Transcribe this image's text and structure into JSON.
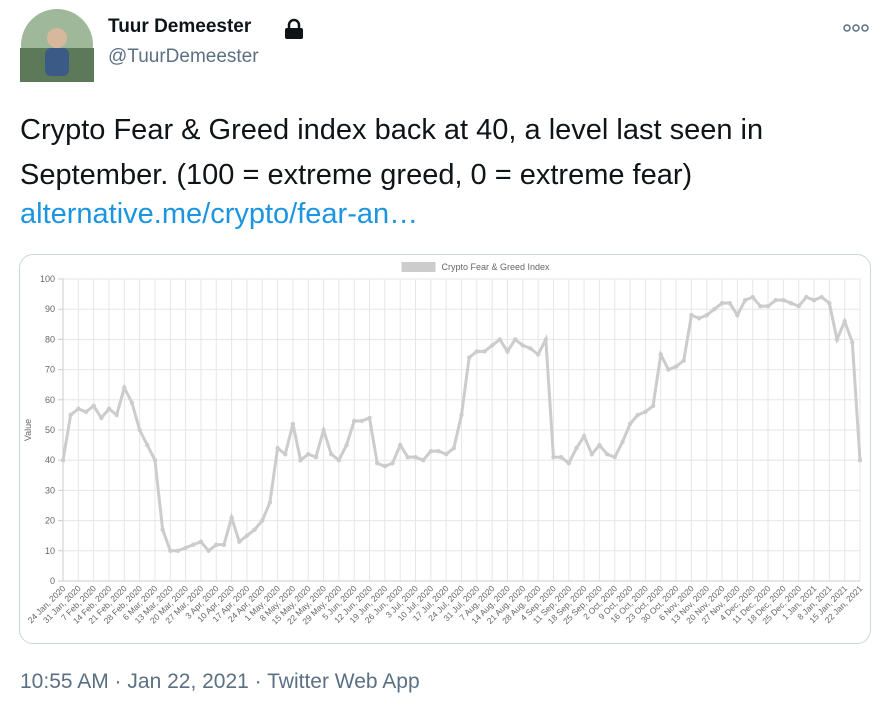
{
  "tweet": {
    "name": "Tuur Demeester",
    "handle": "@TuurDemeester",
    "text": "Crypto Fear & Greed index back at 40, a level last seen in September. (100 = extreme greed, 0 = extreme fear)",
    "link": "alternative.me/crypto/fear-an…",
    "footer": "10:55 AM · Jan 22, 2021 · Twitter Web App"
  },
  "chart_data": {
    "type": "line",
    "y_label": "Value",
    "grid": true,
    "legend": "top",
    "ylim": [
      0,
      100
    ],
    "yticks": [
      0,
      10,
      20,
      30,
      40,
      50,
      60,
      70,
      80,
      90,
      100
    ],
    "categories": [
      "24 Jan, 2020",
      null,
      "31 Jan, 2020",
      null,
      "7 Feb, 2020",
      null,
      "14 Feb, 2020",
      null,
      "21 Feb, 2020",
      null,
      "28 Feb, 2020",
      null,
      "6 Mar, 2020",
      null,
      "13 Mar, 2020",
      null,
      "20 Mar, 2020",
      null,
      "27 Mar, 2020",
      null,
      "3 Apr, 2020",
      null,
      "10 Apr, 2020",
      null,
      "17 Apr, 2020",
      null,
      "24 Apr, 2020",
      null,
      "1 May, 2020",
      null,
      "8 May, 2020",
      null,
      "15 May, 2020",
      null,
      "22 May, 2020",
      null,
      "29 May, 2020",
      null,
      "5 Jun, 2020",
      null,
      "12 Jun, 2020",
      null,
      "19 Jun, 2020",
      null,
      "26 Jun, 2020",
      null,
      "3 Jul, 2020",
      null,
      "10 Jul, 2020",
      null,
      "17 Jul, 2020",
      null,
      "24 Jul, 2020",
      null,
      "31 Jul, 2020",
      null,
      "7 Aug, 2020",
      null,
      "14 Aug, 2020",
      null,
      "21 Aug, 2020",
      null,
      "28 Aug, 2020",
      null,
      "4 Sep, 2020",
      null,
      "11 Sep, 2020",
      null,
      "18 Sep, 2020",
      null,
      "25 Sep, 2020",
      null,
      "2 Oct, 2020",
      null,
      "9 Oct, 2020",
      null,
      "16 Oct, 2020",
      null,
      "23 Oct, 2020",
      null,
      "30 Oct, 2020",
      null,
      "6 Nov, 2020",
      null,
      "13 Nov, 2020",
      null,
      "20 Nov, 2020",
      null,
      "27 Nov, 2020",
      null,
      "4 Dec, 2020",
      null,
      "11 Dec, 2020",
      null,
      "18 Dec, 2020",
      null,
      "25 Dec, 2020",
      null,
      "1 Jan, 2021",
      null,
      "8 Jan, 2021",
      null,
      "15 Jan, 2021",
      null,
      "22 Jan, 2021"
    ],
    "series": [
      {
        "name": "Crypto Fear & Greed Index",
        "color": "#cccccc",
        "values": [
          40,
          55,
          57,
          56,
          58,
          54,
          57,
          55,
          64,
          59,
          50,
          45,
          40,
          17,
          10,
          10,
          11,
          12,
          13,
          10,
          12,
          12,
          21,
          13,
          15,
          17,
          20,
          26,
          44,
          42,
          52,
          40,
          42,
          41,
          50,
          42,
          40,
          45,
          53,
          53,
          54,
          39,
          38,
          39,
          45,
          41,
          41,
          40,
          43,
          43,
          42,
          44,
          55,
          74,
          76,
          76,
          78,
          80,
          76,
          80,
          78,
          77,
          75,
          80,
          41,
          41,
          39,
          44,
          48,
          42,
          45,
          42,
          41,
          46,
          52,
          55,
          56,
          58,
          75,
          70,
          71,
          73,
          88,
          87,
          88,
          90,
          92,
          92,
          88,
          93,
          94,
          91,
          91,
          93,
          93,
          92,
          91,
          94,
          93,
          94,
          92,
          80,
          86,
          79,
          40
        ]
      }
    ]
  }
}
